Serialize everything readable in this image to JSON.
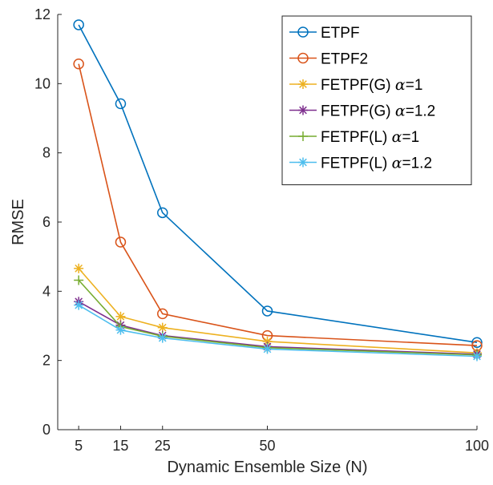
{
  "chart_data": {
    "type": "line",
    "title": "",
    "xlabel": "Dynamic Ensemble Size (N)",
    "ylabel": "RMSE",
    "x": [
      5,
      15,
      25,
      50,
      100
    ],
    "xticks": [
      "5",
      "15",
      "25",
      "50",
      "100"
    ],
    "yticks": [
      "0",
      "2",
      "4",
      "6",
      "8",
      "10",
      "12"
    ],
    "xlim": [
      0,
      100
    ],
    "ylim": [
      0,
      12
    ],
    "grid": false,
    "legend_position": "top-right",
    "series": [
      {
        "name": "ETPF",
        "name_prefix": "ETPF",
        "greek": "",
        "name_suffix": "",
        "color": "#0072BD",
        "marker": "circle",
        "values": [
          11.7,
          9.42,
          6.27,
          3.43,
          2.52
        ]
      },
      {
        "name": "ETPF2",
        "name_prefix": "ETPF2",
        "greek": "",
        "name_suffix": "",
        "color": "#D95319",
        "marker": "circle",
        "values": [
          10.57,
          5.42,
          3.35,
          2.72,
          2.43
        ]
      },
      {
        "name": "FETPF(G) α=1",
        "name_prefix": "FETPF(G) ",
        "greek": "α",
        "name_suffix": "=1",
        "color": "#EDB120",
        "marker": "asterisk",
        "values": [
          4.66,
          3.27,
          2.95,
          2.55,
          2.22
        ]
      },
      {
        "name": "FETPF(G) α=1.2",
        "name_prefix": "FETPF(G) ",
        "greek": "α",
        "name_suffix": "=1.2",
        "color": "#7E2F8E",
        "marker": "asterisk",
        "values": [
          3.7,
          3.02,
          2.72,
          2.4,
          2.18
        ]
      },
      {
        "name": "FETPF(L) α=1",
        "name_prefix": "FETPF(L) ",
        "greek": "α",
        "name_suffix": "=1",
        "color": "#77AC30",
        "marker": "plus",
        "values": [
          4.32,
          2.98,
          2.7,
          2.37,
          2.16
        ]
      },
      {
        "name": "FETPF(L) α=1.2",
        "name_prefix": "FETPF(L) ",
        "greek": "α",
        "name_suffix": "=1.2",
        "color": "#4DBEEE",
        "marker": "asterisk",
        "values": [
          3.6,
          2.88,
          2.65,
          2.33,
          2.12
        ]
      }
    ]
  }
}
